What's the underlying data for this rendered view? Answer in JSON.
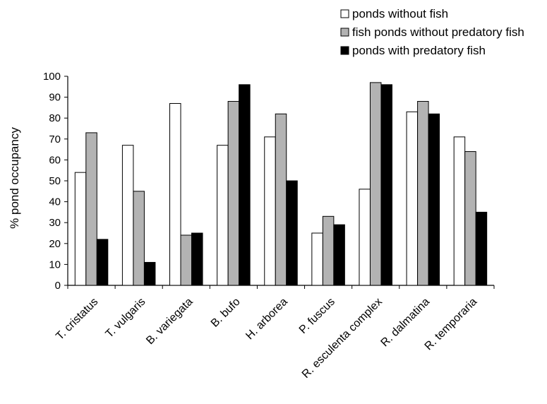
{
  "chart_data": {
    "type": "bar",
    "title": "",
    "xlabel": "",
    "ylabel": "% pond occupancy",
    "ylim": [
      0,
      100
    ],
    "yticks": [
      0,
      10,
      20,
      30,
      40,
      50,
      60,
      70,
      80,
      90,
      100
    ],
    "grid": false,
    "legend_position": "top-right",
    "categories": [
      "T. cristatus",
      "T. vulgaris",
      "B. variegata",
      "B. bufo",
      "H. arborea",
      "P. fuscus",
      "R. esculenta complex",
      "R. dalmatina",
      "R. temporaria"
    ],
    "series": [
      {
        "name": "ponds without fish",
        "color": "#ffffff",
        "values": [
          54,
          67,
          87,
          67,
          71,
          25,
          46,
          83,
          71
        ]
      },
      {
        "name": "fish ponds without predatory fish",
        "color": "#b3b3b3",
        "values": [
          73,
          45,
          24,
          88,
          82,
          33,
          97,
          88,
          64
        ]
      },
      {
        "name": "ponds with predatory fish",
        "color": "#000000",
        "values": [
          22,
          11,
          25,
          96,
          50,
          29,
          96,
          82,
          35
        ]
      }
    ]
  }
}
